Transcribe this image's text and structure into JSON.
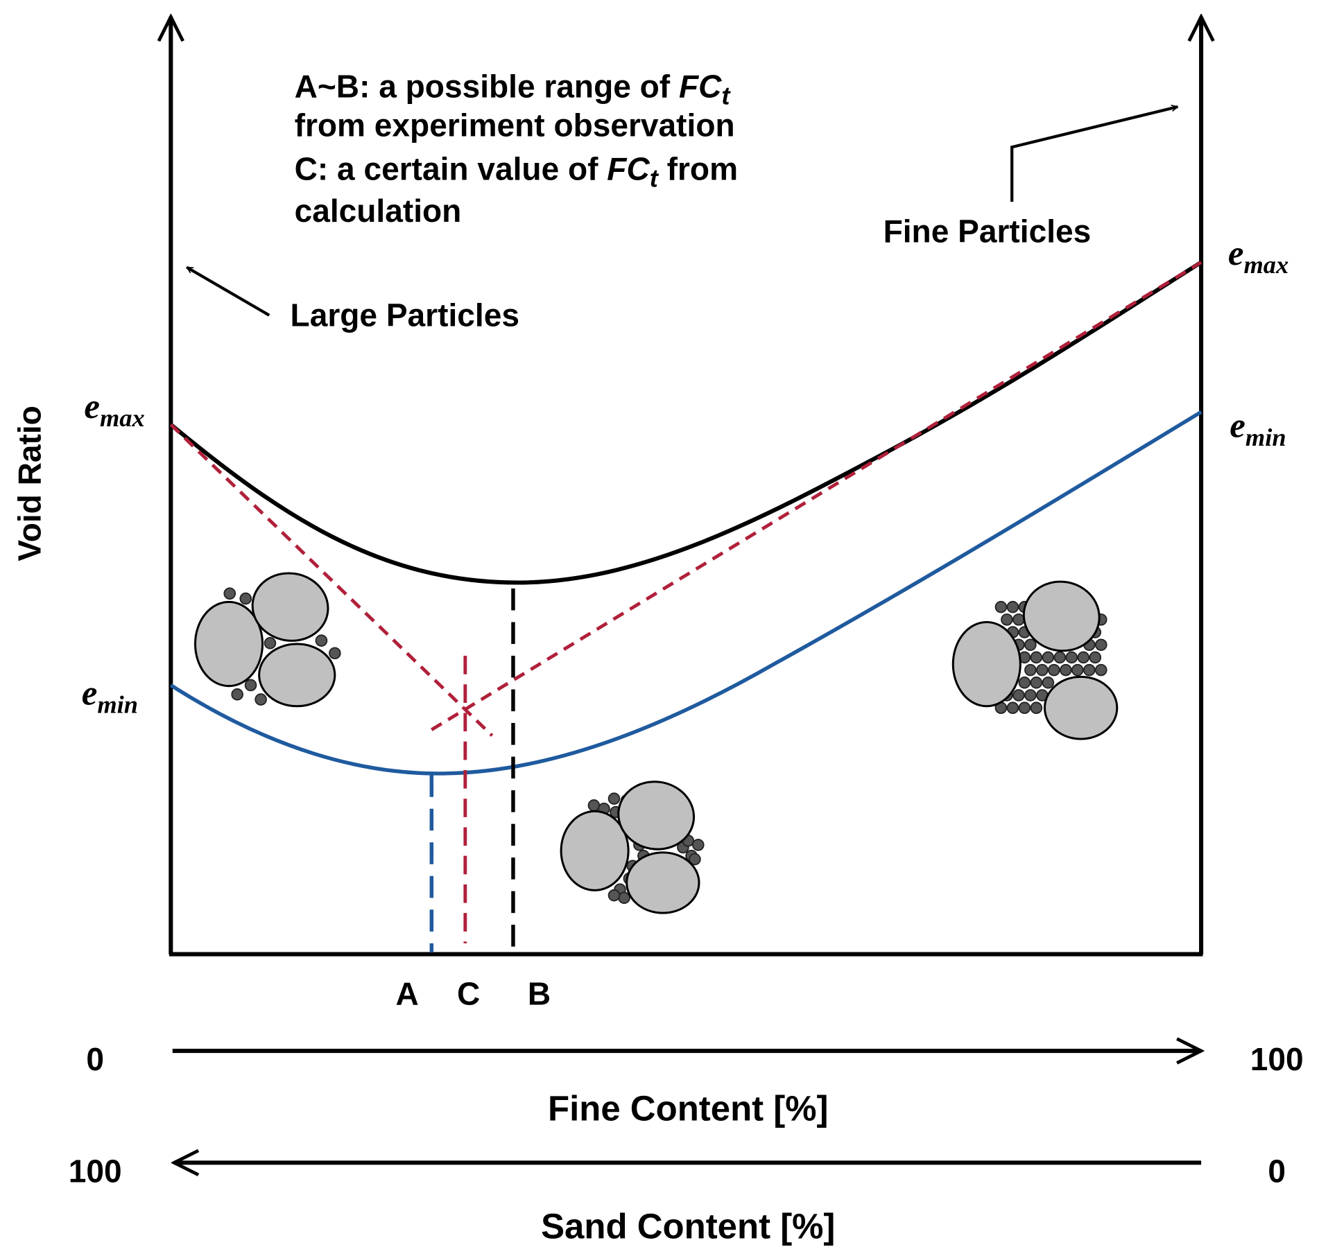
{
  "annotation": {
    "lines": [
      {
        "text": "A~B: a possible range of ",
        "symbol": "FC",
        "subscript": "t"
      },
      {
        "text": "from experiment observation"
      },
      {
        "text": "C: a certain value of ",
        "symbol": "FC",
        "subscript": "t",
        "after": " from"
      },
      {
        "text": "calculation"
      }
    ]
  },
  "labels": {
    "large_particles": "Large Particles",
    "fine_particles": "Fine Particles",
    "y_axis": "Void Ratio"
  },
  "left_axis": {
    "e_max": {
      "symbol": "e",
      "subscript": "max"
    },
    "e_min": {
      "symbol": "e",
      "subscript": "min"
    }
  },
  "right_axis": {
    "e_max": {
      "symbol": "e",
      "subscript": "max"
    },
    "e_min": {
      "symbol": "e",
      "subscript": "min"
    }
  },
  "markers": [
    "A",
    "C",
    "B"
  ],
  "fine_axis": {
    "start": "0",
    "end": "100",
    "title": "Fine Content [%]"
  },
  "sand_axis": {
    "start": "100",
    "end": "0",
    "title": "Sand Content [%]"
  }
}
